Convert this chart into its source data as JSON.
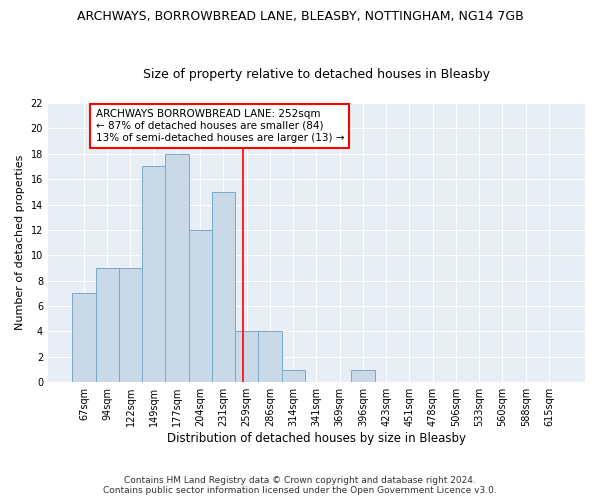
{
  "title1": "ARCHWAYS, BORROWBREAD LANE, BLEASBY, NOTTINGHAM, NG14 7GB",
  "title2": "Size of property relative to detached houses in Bleasby",
  "xlabel": "Distribution of detached houses by size in Bleasby",
  "ylabel": "Number of detached properties",
  "categories": [
    "67sqm",
    "94sqm",
    "122sqm",
    "149sqm",
    "177sqm",
    "204sqm",
    "231sqm",
    "259sqm",
    "286sqm",
    "314sqm",
    "341sqm",
    "369sqm",
    "396sqm",
    "423sqm",
    "451sqm",
    "478sqm",
    "506sqm",
    "533sqm",
    "560sqm",
    "588sqm",
    "615sqm"
  ],
  "values": [
    7,
    9,
    9,
    17,
    18,
    12,
    15,
    4,
    4,
    1,
    0,
    0,
    1,
    0,
    0,
    0,
    0,
    0,
    0,
    0,
    0
  ],
  "bar_color": "#c9d9e8",
  "bar_edge_color": "#7aaac8",
  "annotation_text": "ARCHWAYS BORROWBREAD LANE: 252sqm\n← 87% of detached houses are smaller (84)\n13% of semi-detached houses are larger (13) →",
  "annotation_box_color": "white",
  "annotation_box_edge_color": "red",
  "red_line_x": 6.85,
  "ylim": [
    0,
    22
  ],
  "yticks": [
    0,
    2,
    4,
    6,
    8,
    10,
    12,
    14,
    16,
    18,
    20,
    22
  ],
  "background_color": "#e8eef5",
  "footer_line1": "Contains HM Land Registry data © Crown copyright and database right 2024.",
  "footer_line2": "Contains public sector information licensed under the Open Government Licence v3.0.",
  "title1_fontsize": 9,
  "title2_fontsize": 9,
  "xlabel_fontsize": 8.5,
  "ylabel_fontsize": 8,
  "tick_fontsize": 7,
  "annotation_fontsize": 7.5,
  "footer_fontsize": 6.5
}
